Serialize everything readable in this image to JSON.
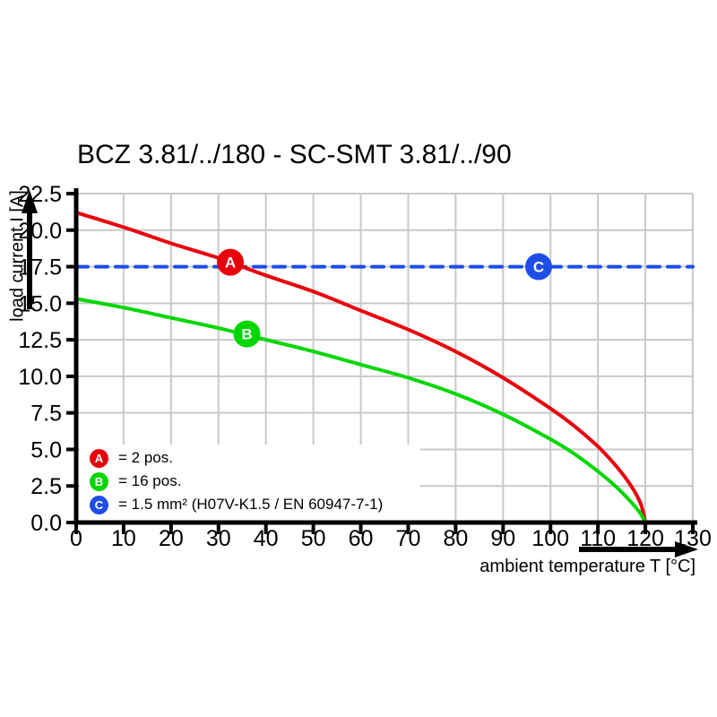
{
  "title": "BCZ 3.81/../180 - SC-SMT 3.81/../90",
  "chart_data": {
    "type": "line",
    "title": "BCZ 3.81/../180 - SC-SMT 3.81/../90",
    "xlabel": "ambient temperature T [°C]",
    "ylabel": "load current I [A]",
    "xlim": [
      0,
      130
    ],
    "ylim": [
      0,
      22.5
    ],
    "x_ticks": [
      0,
      10,
      20,
      30,
      40,
      50,
      60,
      70,
      80,
      90,
      100,
      110,
      120,
      130
    ],
    "y_ticks": [
      0,
      2.5,
      5,
      7.5,
      10,
      12.5,
      15,
      17.5,
      20,
      22.5
    ],
    "y_tick_labels": [
      "0.0",
      "2.5",
      "5.0",
      "7.5",
      "10.0",
      "12.5",
      "15.0",
      "17.5",
      "20.0",
      "22.5"
    ],
    "grid": true,
    "grid_color": "#c9c9c9",
    "axis_color": "#000000",
    "series": [
      {
        "name": "A",
        "color": "#e8000b",
        "style": "solid",
        "points": [
          [
            0,
            21.2
          ],
          [
            10,
            20.2
          ],
          [
            20,
            19.1
          ],
          [
            30,
            18.1
          ],
          [
            35,
            17.5
          ],
          [
            40,
            16.9
          ],
          [
            50,
            15.8
          ],
          [
            60,
            14.5
          ],
          [
            70,
            13.2
          ],
          [
            80,
            11.7
          ],
          [
            90,
            9.9
          ],
          [
            100,
            7.8
          ],
          [
            105,
            6.6
          ],
          [
            110,
            5.2
          ],
          [
            114,
            3.8
          ],
          [
            117,
            2.5
          ],
          [
            119,
            1.3
          ],
          [
            120,
            0
          ]
        ],
        "marker": {
          "letter": "A",
          "x": 32.5,
          "y": 17.8
        }
      },
      {
        "name": "B",
        "color": "#00d600",
        "style": "solid",
        "points": [
          [
            0,
            15.3
          ],
          [
            10,
            14.7
          ],
          [
            20,
            14.0
          ],
          [
            30,
            13.3
          ],
          [
            40,
            12.5
          ],
          [
            50,
            11.7
          ],
          [
            60,
            10.8
          ],
          [
            70,
            9.9
          ],
          [
            80,
            8.8
          ],
          [
            90,
            7.4
          ],
          [
            100,
            5.7
          ],
          [
            105,
            4.7
          ],
          [
            110,
            3.5
          ],
          [
            114,
            2.4
          ],
          [
            117,
            1.4
          ],
          [
            119,
            0.6
          ],
          [
            120,
            0
          ]
        ],
        "marker": {
          "letter": "B",
          "x": 36,
          "y": 12.9
        }
      },
      {
        "name": "C",
        "color": "#1d4ee8",
        "style": "dashed",
        "points": [
          [
            0,
            17.5
          ],
          [
            130,
            17.5
          ]
        ],
        "marker": {
          "letter": "C",
          "x": 97.5,
          "y": 17.5
        }
      }
    ],
    "legend": {
      "position": "bottom-left",
      "items": [
        {
          "letter": "A",
          "color": "#e8000b",
          "label": "= 2 pos."
        },
        {
          "letter": "B",
          "color": "#00d600",
          "label": "= 16 pos."
        },
        {
          "letter": "C",
          "color": "#1d4ee8",
          "label": "= 1.5 mm² (H07V-K1.5 / EN 60947-7-1)"
        }
      ]
    }
  }
}
